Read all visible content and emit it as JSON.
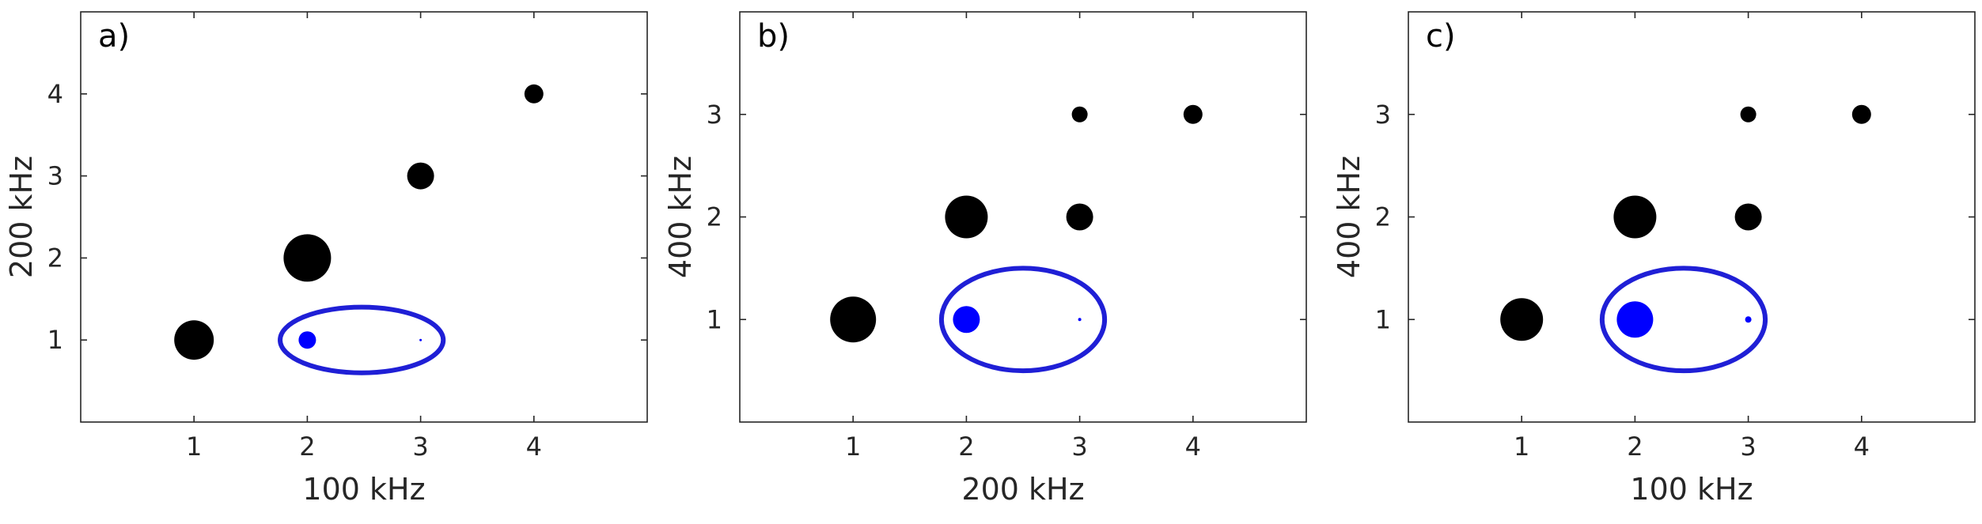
{
  "colors": {
    "default_point": "#000000",
    "highlight_point": "#0000ff",
    "ellipse": "#1f1fd6",
    "axis": "#262626"
  },
  "chart_data": [
    {
      "type": "scatter",
      "panel_label": "a)",
      "xlabel": "100 kHz",
      "ylabel": "200 kHz",
      "xlim": [
        0,
        5
      ],
      "ylim": [
        0,
        5
      ],
      "xticks": [
        1,
        2,
        3,
        4
      ],
      "yticks": [
        1,
        2,
        3,
        4
      ],
      "grid": false,
      "points": [
        {
          "x": 1,
          "y": 1,
          "size": 25,
          "color": "black"
        },
        {
          "x": 2,
          "y": 1,
          "size": 11,
          "color": "blue"
        },
        {
          "x": 3,
          "y": 1,
          "size": 1,
          "color": "blue"
        },
        {
          "x": 2,
          "y": 2,
          "size": 30,
          "color": "black"
        },
        {
          "x": 3,
          "y": 3,
          "size": 17,
          "color": "black"
        },
        {
          "x": 4,
          "y": 4,
          "size": 12,
          "color": "black"
        }
      ],
      "ellipse": {
        "cx": 2.48,
        "cy": 1,
        "rx": 0.72,
        "ry": 0.4
      }
    },
    {
      "type": "scatter",
      "panel_label": "b)",
      "xlabel": "200 kHz",
      "ylabel": "400 kHz",
      "xlim": [
        0,
        5
      ],
      "ylim": [
        0,
        4
      ],
      "xticks": [
        1,
        2,
        3,
        4
      ],
      "yticks": [
        1,
        2,
        3
      ],
      "grid": false,
      "points": [
        {
          "x": 1,
          "y": 1,
          "size": 29,
          "color": "black"
        },
        {
          "x": 2,
          "y": 1,
          "size": 17,
          "color": "blue"
        },
        {
          "x": 3,
          "y": 1,
          "size": 2,
          "color": "blue"
        },
        {
          "x": 2,
          "y": 2,
          "size": 27,
          "color": "black"
        },
        {
          "x": 3,
          "y": 2,
          "size": 17,
          "color": "black"
        },
        {
          "x": 3,
          "y": 3,
          "size": 10,
          "color": "black"
        },
        {
          "x": 4,
          "y": 3,
          "size": 12,
          "color": "black"
        }
      ],
      "ellipse": {
        "cx": 2.5,
        "cy": 1,
        "rx": 0.72,
        "ry": 0.4
      }
    },
    {
      "type": "scatter",
      "panel_label": "c)",
      "xlabel": "100 kHz",
      "ylabel": "400 kHz",
      "xlim": [
        0,
        5
      ],
      "ylim": [
        0,
        4
      ],
      "xticks": [
        1,
        2,
        3,
        4
      ],
      "yticks": [
        1,
        2,
        3
      ],
      "grid": false,
      "points": [
        {
          "x": 1,
          "y": 1,
          "size": 27,
          "color": "black"
        },
        {
          "x": 2,
          "y": 1,
          "size": 23,
          "color": "blue"
        },
        {
          "x": 3,
          "y": 1,
          "size": 4,
          "color": "blue"
        },
        {
          "x": 2,
          "y": 2,
          "size": 27,
          "color": "black"
        },
        {
          "x": 3,
          "y": 2,
          "size": 17,
          "color": "black"
        },
        {
          "x": 3,
          "y": 3,
          "size": 10,
          "color": "black"
        },
        {
          "x": 4,
          "y": 3,
          "size": 12,
          "color": "black"
        }
      ],
      "ellipse": {
        "cx": 2.43,
        "cy": 1,
        "rx": 0.72,
        "ry": 0.4
      }
    }
  ]
}
